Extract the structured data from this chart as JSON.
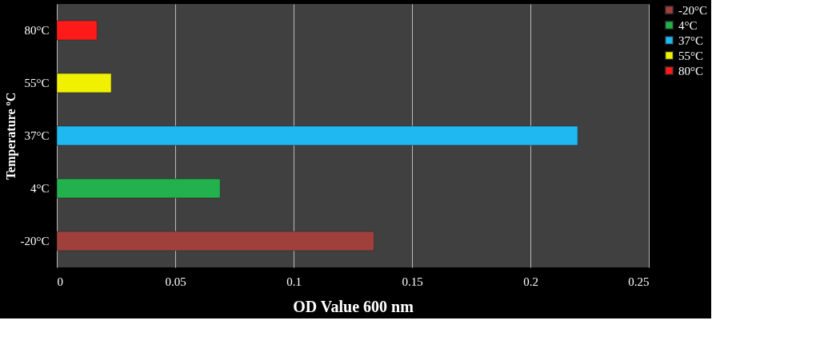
{
  "chart_data": {
    "type": "bar",
    "orientation": "horizontal",
    "xlabel": "OD Value 600 nm",
    "ylabel": "Temperature ºC",
    "categories": [
      "80°C",
      "55°C",
      "37°C",
      "4°C",
      "-20°C"
    ],
    "series": [
      {
        "name": "-20°C",
        "color": "#a0403c",
        "values": [
          null,
          null,
          null,
          null,
          0.134
        ]
      },
      {
        "name": "4°C",
        "color": "#22b14c",
        "values": [
          null,
          null,
          null,
          0.069,
          null
        ]
      },
      {
        "name": "37°C",
        "color": "#1fb8f0",
        "values": [
          null,
          null,
          0.22,
          null,
          null
        ]
      },
      {
        "name": "55°C",
        "color": "#f0f000",
        "values": [
          null,
          0.023,
          null,
          null,
          null
        ]
      },
      {
        "name": "80°C",
        "color": "#ff1a1a",
        "values": [
          0.017,
          null,
          null,
          null,
          null
        ]
      }
    ],
    "xlim": [
      0,
      0.25
    ],
    "xticks": [
      0,
      0.05,
      0.1,
      0.15,
      0.2,
      0.25
    ],
    "grid": "x",
    "legend": "right"
  }
}
